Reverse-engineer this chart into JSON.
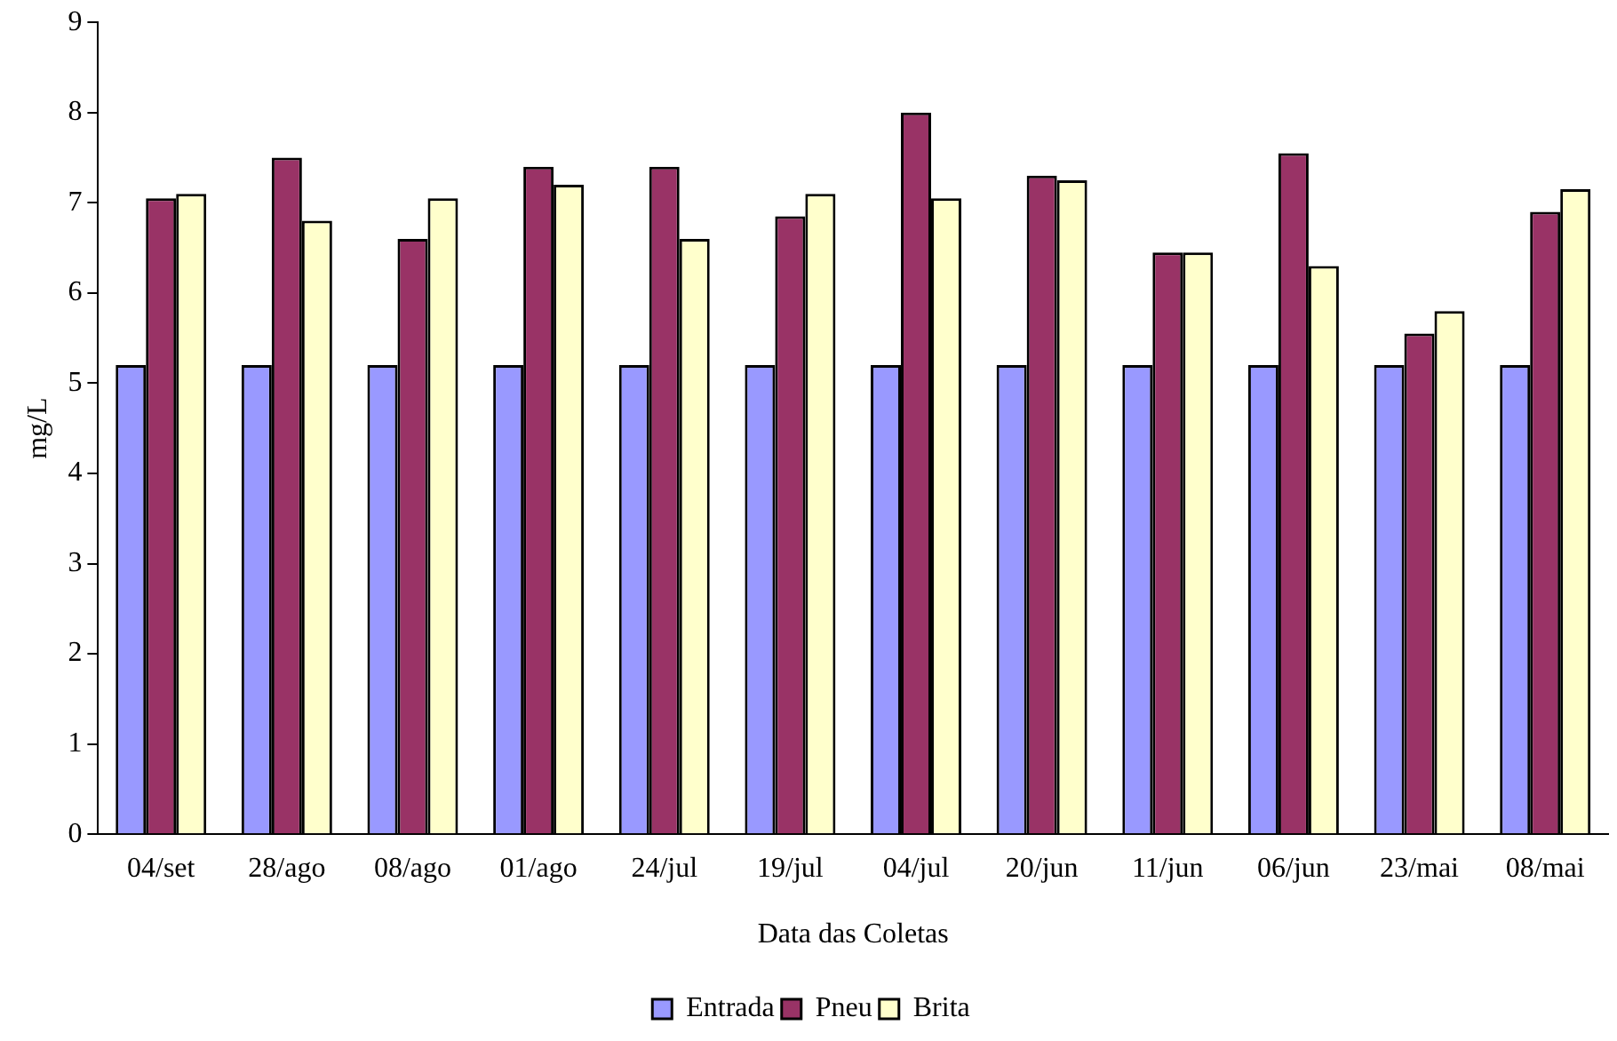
{
  "chart_data": {
    "type": "bar",
    "xlabel": "Data das Coletas",
    "ylabel": "mg/L",
    "categories": [
      "04/set",
      "28/ago",
      "08/ago",
      "01/ago",
      "24/jul",
      "19/jul",
      "04/jul",
      "20/jun",
      "11/jun",
      "06/jun",
      "23/mai",
      "08/mai"
    ],
    "series": [
      {
        "name": "Entrada",
        "color": "#9999ff",
        "values": [
          5.2,
          5.2,
          5.2,
          5.2,
          5.2,
          5.2,
          5.2,
          5.2,
          5.2,
          5.2,
          5.2,
          5.2
        ]
      },
      {
        "name": "Pneu",
        "color": "#993366",
        "values": [
          7.05,
          7.5,
          6.6,
          7.4,
          7.4,
          6.85,
          8.0,
          7.3,
          6.45,
          7.55,
          5.55,
          6.9
        ]
      },
      {
        "name": "Brita",
        "color": "#ffffcc",
        "values": [
          7.1,
          6.8,
          7.05,
          7.2,
          6.6,
          7.1,
          7.05,
          7.25,
          6.45,
          6.3,
          5.8,
          7.15
        ]
      }
    ],
    "ylim": [
      0,
      9
    ],
    "yticks": [
      0,
      1,
      2,
      3,
      4,
      5,
      6,
      7,
      8,
      9
    ],
    "grid": false,
    "legend": "bottom"
  }
}
